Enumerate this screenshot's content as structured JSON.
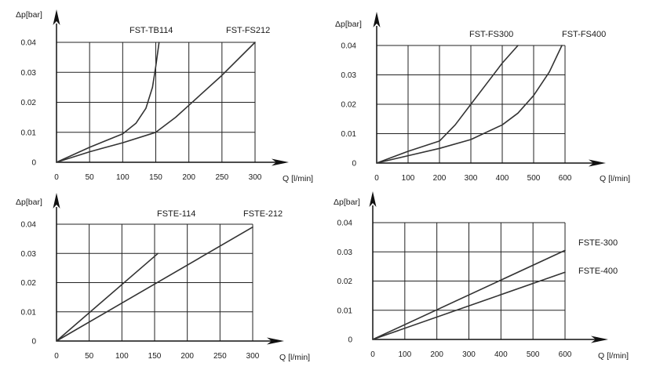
{
  "chart_data": [
    {
      "type": "line",
      "ylabel": "Δp[bar]",
      "xlabel": "Q [l/min]",
      "xlim": [
        0,
        300
      ],
      "ylim": [
        0,
        0.04
      ],
      "x_ticks": [
        "0",
        "50",
        "100",
        "150",
        "200",
        "250",
        "300"
      ],
      "y_ticks": [
        "0",
        "0.01",
        "0.02",
        "0.03",
        "0.04"
      ],
      "grid": true,
      "series": [
        {
          "name": "FST-TB114",
          "x": [
            0,
            50,
            100,
            120,
            135,
            145,
            150,
            155
          ],
          "y": [
            0,
            0.005,
            0.0095,
            0.013,
            0.018,
            0.025,
            0.032,
            0.04
          ]
        },
        {
          "name": "FST-FS212",
          "x": [
            0,
            50,
            100,
            150,
            180,
            200,
            250,
            300
          ],
          "y": [
            0,
            0.0035,
            0.0065,
            0.01,
            0.015,
            0.019,
            0.029,
            0.04
          ]
        }
      ]
    },
    {
      "type": "line",
      "ylabel": "Δp[bar]",
      "xlabel": "Q [l/min]",
      "xlim": [
        0,
        600
      ],
      "ylim": [
        0,
        0.04
      ],
      "x_ticks": [
        "0",
        "100",
        "200",
        "300",
        "400",
        "500",
        "600"
      ],
      "y_ticks": [
        "0",
        "0.01",
        "0.02",
        "0.03",
        "0.04"
      ],
      "grid": true,
      "series": [
        {
          "name": "FST-FS300",
          "x": [
            0,
            100,
            200,
            250,
            300,
            350,
            400,
            450
          ],
          "y": [
            0,
            0.004,
            0.0075,
            0.013,
            0.02,
            0.027,
            0.034,
            0.04
          ]
        },
        {
          "name": "FST-FS400",
          "x": [
            0,
            100,
            200,
            300,
            400,
            450,
            500,
            550,
            590
          ],
          "y": [
            0,
            0.0025,
            0.005,
            0.008,
            0.013,
            0.017,
            0.023,
            0.031,
            0.04
          ]
        }
      ]
    },
    {
      "type": "line",
      "ylabel": "Δp[bar]",
      "xlabel": "Q [l/min]",
      "xlim": [
        0,
        300
      ],
      "ylim": [
        0,
        0.04
      ],
      "x_ticks": [
        "0",
        "50",
        "100",
        "150",
        "200",
        "250",
        "300"
      ],
      "y_ticks": [
        "0",
        "0.01",
        "0.02",
        "0.03",
        "0.04"
      ],
      "grid": true,
      "series": [
        {
          "name": "FSTE-114",
          "x": [
            0,
            155
          ],
          "y": [
            0,
            0.03
          ]
        },
        {
          "name": "FSTE-212",
          "x": [
            0,
            300
          ],
          "y": [
            0,
            0.039
          ]
        }
      ]
    },
    {
      "type": "line",
      "ylabel": "Δp[bar]",
      "xlabel": "Q [l/min]",
      "xlim": [
        0,
        600
      ],
      "ylim": [
        0,
        0.04
      ],
      "x_ticks": [
        "0",
        "100",
        "200",
        "300",
        "400",
        "500",
        "600"
      ],
      "y_ticks": [
        "0",
        "0.01",
        "0.02",
        "0.03",
        "0.04"
      ],
      "grid": true,
      "series": [
        {
          "name": "FSTE-300",
          "x": [
            0,
            600
          ],
          "y": [
            0,
            0.0305
          ]
        },
        {
          "name": "FSTE-400",
          "x": [
            0,
            600
          ],
          "y": [
            0,
            0.023
          ]
        }
      ]
    }
  ]
}
